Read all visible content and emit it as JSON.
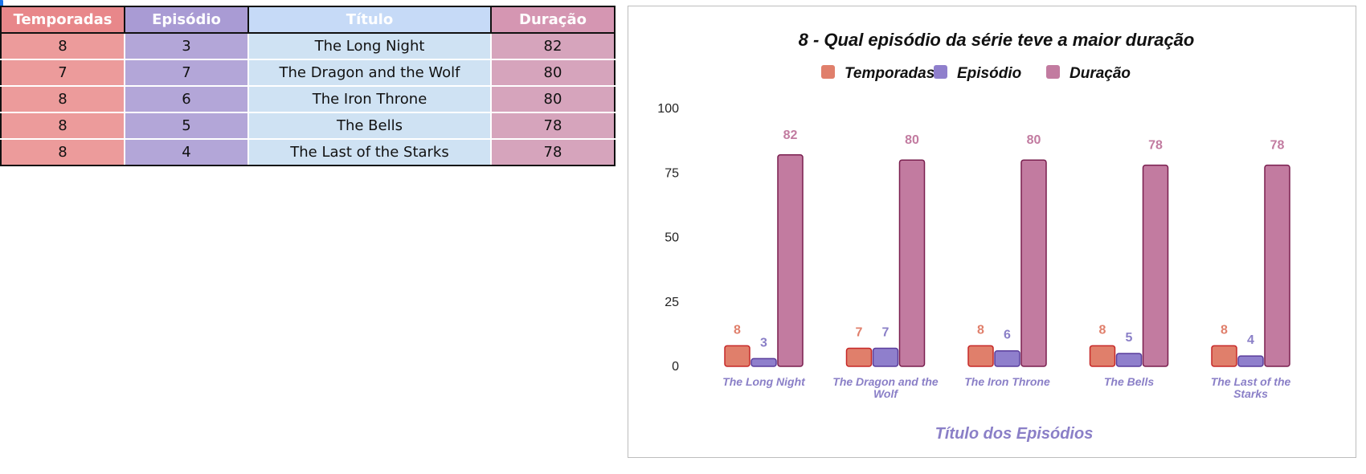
{
  "table": {
    "headers": [
      "Temporadas",
      "Episódio",
      "Título",
      "Duração"
    ],
    "rows": [
      [
        "8",
        "3",
        "The Long Night",
        "82"
      ],
      [
        "7",
        "7",
        "The Dragon and the Wolf",
        "80"
      ],
      [
        "8",
        "6",
        "The Iron Throne",
        "80"
      ],
      [
        "8",
        "5",
        "The Bells",
        "78"
      ],
      [
        "8",
        "4",
        "The Last of the Starks",
        "78"
      ]
    ]
  },
  "colors": {
    "temporadas": "#e07f6b",
    "temporadas_stroke": "#c62828",
    "episodio": "#8f7fcc",
    "episodio_stroke": "#5a3d9c",
    "duracao": "#c27ba0",
    "duracao_stroke": "#7a1f4f",
    "label_temporadas": "#e07f6b",
    "label_episodio": "#8a7fc7",
    "label_duracao": "#c27ba0"
  },
  "chart_data": {
    "type": "bar",
    "title": "8 - Qual episódio da série teve a maior duração",
    "xlabel": "Título dos Episódios",
    "ylabel": "",
    "categories": [
      [
        "The Long Night"
      ],
      [
        "The Dragon and the",
        "Wolf"
      ],
      [
        "The Iron Throne"
      ],
      [
        "The Bells"
      ],
      [
        "The Last of the",
        "Starks"
      ]
    ],
    "series": [
      {
        "name": "Temporadas",
        "values": [
          8,
          7,
          8,
          8,
          8
        ]
      },
      {
        "name": "Episódio",
        "values": [
          3,
          7,
          6,
          5,
          4
        ]
      },
      {
        "name": "Duração",
        "values": [
          82,
          80,
          80,
          78,
          78
        ]
      }
    ],
    "ylim": [
      0,
      100
    ],
    "yticks": [
      0,
      25,
      50,
      75,
      100
    ],
    "legend": "top",
    "grid": false,
    "data_labels": true
  }
}
